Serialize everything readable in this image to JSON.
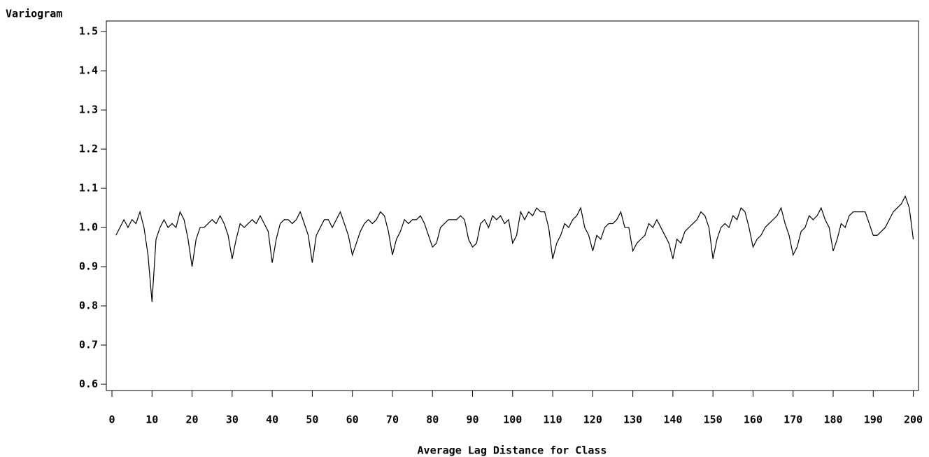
{
  "chart_data": {
    "type": "line",
    "y_label": "Variogram",
    "x_label": "Average Lag Distance for Class",
    "color": "#000000",
    "x": [
      1,
      2,
      3,
      4,
      5,
      6,
      7,
      8,
      9,
      10,
      11,
      12,
      13,
      14,
      15,
      16,
      17,
      18,
      19,
      20,
      21,
      22,
      23,
      24,
      25,
      26,
      27,
      28,
      29,
      30,
      31,
      32,
      33,
      34,
      35,
      36,
      37,
      38,
      39,
      40,
      41,
      42,
      43,
      44,
      45,
      46,
      47,
      48,
      49,
      50,
      51,
      52,
      53,
      54,
      55,
      56,
      57,
      58,
      59,
      60,
      61,
      62,
      63,
      64,
      65,
      66,
      67,
      68,
      69,
      70,
      71,
      72,
      73,
      74,
      75,
      76,
      77,
      78,
      79,
      80,
      81,
      82,
      83,
      84,
      85,
      86,
      87,
      88,
      89,
      90,
      91,
      92,
      93,
      94,
      95,
      96,
      97,
      98,
      99,
      100,
      101,
      102,
      103,
      104,
      105,
      106,
      107,
      108,
      109,
      110,
      111,
      112,
      113,
      114,
      115,
      116,
      117,
      118,
      119,
      120,
      121,
      122,
      123,
      124,
      125,
      126,
      127,
      128,
      129,
      130,
      131,
      132,
      133,
      134,
      135,
      136,
      137,
      138,
      139,
      140,
      141,
      142,
      143,
      144,
      145,
      146,
      147,
      148,
      149,
      150,
      151,
      152,
      153,
      154,
      155,
      156,
      157,
      158,
      159,
      160,
      161,
      162,
      163,
      164,
      165,
      166,
      167,
      168,
      169,
      170,
      171,
      172,
      173,
      174,
      175,
      176,
      177,
      178,
      179,
      180,
      181,
      182,
      183,
      184,
      185,
      186,
      187,
      188,
      189,
      190,
      191,
      192,
      193,
      194,
      195,
      196,
      197,
      198,
      199,
      200
    ],
    "values": [
      0.98,
      1.0,
      1.02,
      1.0,
      1.02,
      1.01,
      1.04,
      1.0,
      0.93,
      0.81,
      0.97,
      1.0,
      1.02,
      1.0,
      1.01,
      1.0,
      1.04,
      1.02,
      0.97,
      0.9,
      0.97,
      1.0,
      1.0,
      1.01,
      1.02,
      1.01,
      1.03,
      1.01,
      0.98,
      0.92,
      0.97,
      1.01,
      1.0,
      1.01,
      1.02,
      1.01,
      1.03,
      1.01,
      0.99,
      0.91,
      0.97,
      1.01,
      1.02,
      1.02,
      1.01,
      1.02,
      1.04,
      1.01,
      0.98,
      0.91,
      0.98,
      1.0,
      1.02,
      1.02,
      1.0,
      1.02,
      1.04,
      1.01,
      0.98,
      0.93,
      0.96,
      0.99,
      1.01,
      1.02,
      1.01,
      1.02,
      1.04,
      1.03,
      0.99,
      0.93,
      0.97,
      0.99,
      1.02,
      1.01,
      1.02,
      1.02,
      1.03,
      1.01,
      0.98,
      0.95,
      0.96,
      1.0,
      1.01,
      1.02,
      1.02,
      1.02,
      1.03,
      1.02,
      0.97,
      0.95,
      0.96,
      1.01,
      1.02,
      1.0,
      1.03,
      1.02,
      1.03,
      1.01,
      1.02,
      0.96,
      0.98,
      1.04,
      1.02,
      1.04,
      1.03,
      1.05,
      1.04,
      1.04,
      1.0,
      0.92,
      0.96,
      0.98,
      1.01,
      1.0,
      1.02,
      1.03,
      1.05,
      1.0,
      0.98,
      0.94,
      0.98,
      0.97,
      1.0,
      1.01,
      1.01,
      1.02,
      1.04,
      1.0,
      1.0,
      0.94,
      0.96,
      0.97,
      0.98,
      1.01,
      1.0,
      1.02,
      1.0,
      0.98,
      0.96,
      0.92,
      0.97,
      0.96,
      0.99,
      1.0,
      1.01,
      1.02,
      1.04,
      1.03,
      1.0,
      0.92,
      0.97,
      1.0,
      1.01,
      1.0,
      1.03,
      1.02,
      1.05,
      1.04,
      1.0,
      0.95,
      0.97,
      0.98,
      1.0,
      1.01,
      1.02,
      1.03,
      1.05,
      1.01,
      0.98,
      0.93,
      0.95,
      0.99,
      1.0,
      1.03,
      1.02,
      1.03,
      1.05,
      1.02,
      1.0,
      0.94,
      0.97,
      1.01,
      1.0,
      1.03,
      1.04,
      1.04,
      1.04,
      1.04,
      1.01,
      0.98,
      0.98,
      0.99,
      1.0,
      1.02,
      1.04,
      1.05,
      1.06,
      1.08,
      1.05,
      0.97
    ],
    "xlim": [
      -1.4,
      201.3
    ],
    "ylim": [
      0.584,
      1.527
    ],
    "xticks": [
      0,
      10,
      20,
      30,
      40,
      50,
      60,
      70,
      80,
      90,
      100,
      110,
      120,
      130,
      140,
      150,
      160,
      170,
      180,
      190,
      200
    ],
    "yticks": [
      0.6,
      0.7,
      0.8,
      0.9,
      {
        "value": 1,
        "label": "1.0"
      },
      1.1,
      1.2,
      1.3,
      1.4,
      1.5
    ]
  }
}
